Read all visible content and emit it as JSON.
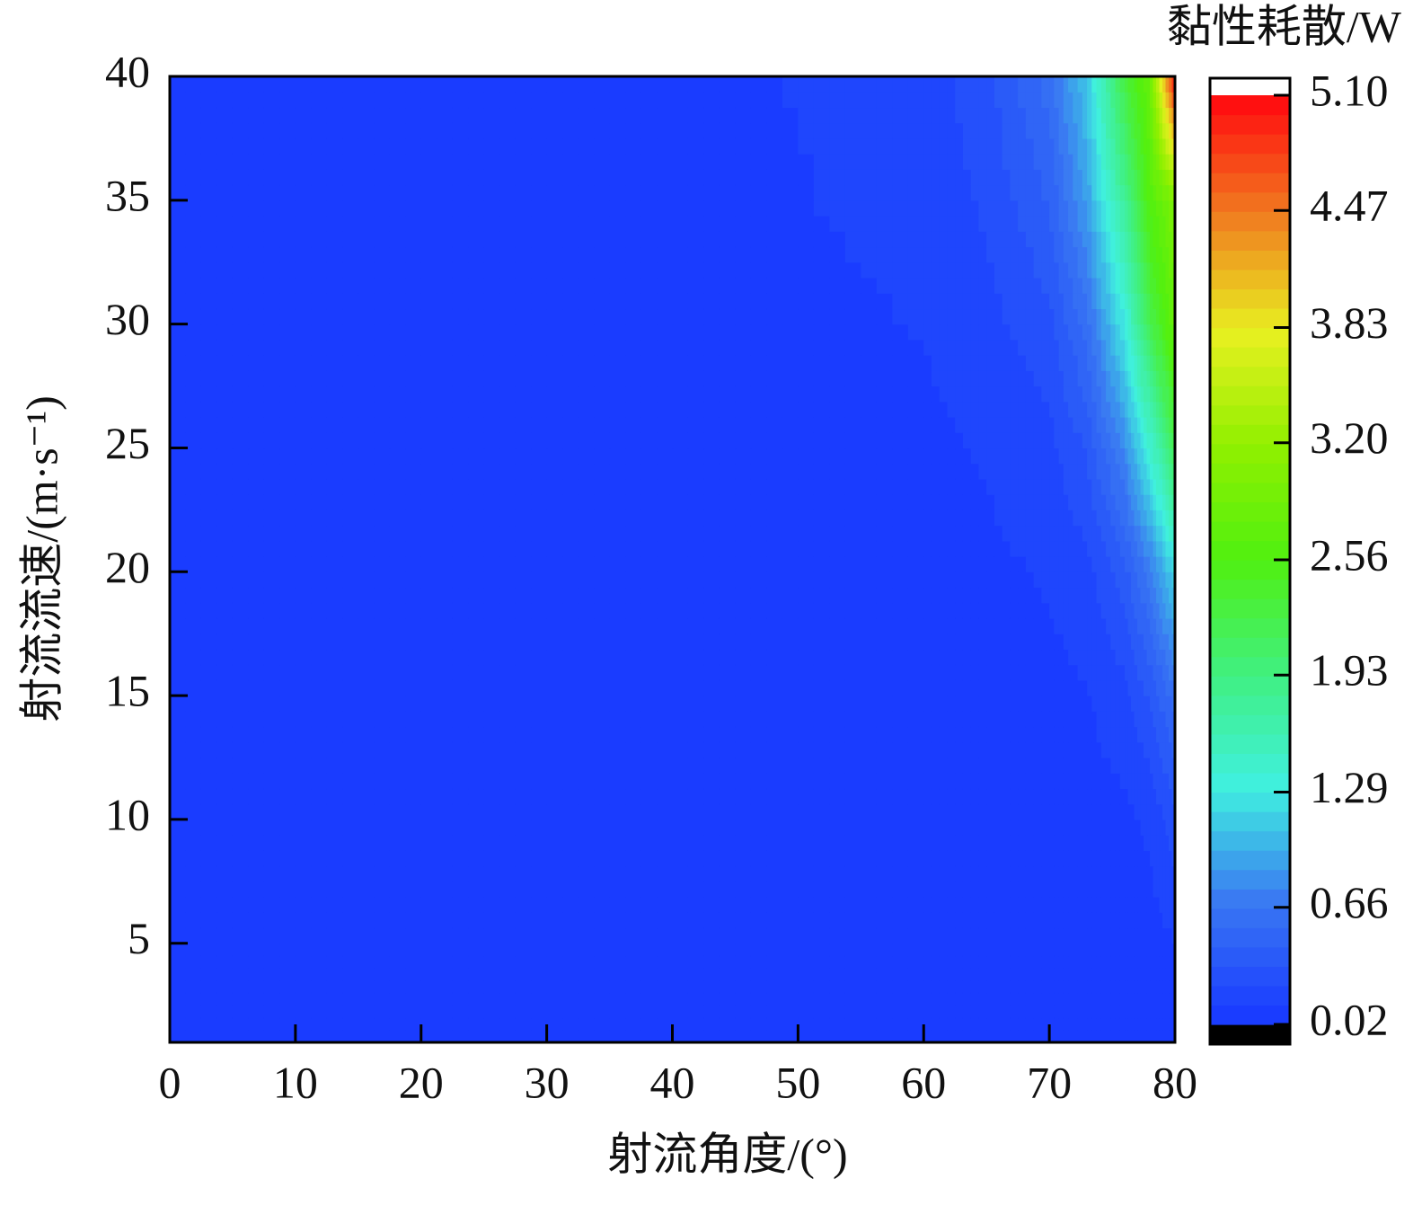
{
  "chart_data": {
    "type": "contour",
    "x_label": "射流角度/(°)",
    "y_label": "射流流速/(m·s⁻¹)",
    "x": [
      0,
      10,
      20,
      30,
      40,
      50,
      60,
      65,
      70,
      73,
      76,
      78,
      80
    ],
    "y": [
      1,
      5,
      10,
      15,
      20,
      25,
      30,
      35,
      40
    ],
    "z": [
      [
        0.03,
        0.03,
        0.03,
        0.03,
        0.03,
        0.03,
        0.03,
        0.04,
        0.04,
        0.05,
        0.05,
        0.06,
        0.08
      ],
      [
        0.03,
        0.03,
        0.03,
        0.03,
        0.03,
        0.03,
        0.04,
        0.05,
        0.05,
        0.06,
        0.07,
        0.08,
        0.12
      ],
      [
        0.03,
        0.03,
        0.03,
        0.03,
        0.03,
        0.04,
        0.05,
        0.06,
        0.07,
        0.08,
        0.1,
        0.15,
        0.3
      ],
      [
        0.03,
        0.03,
        0.03,
        0.03,
        0.04,
        0.05,
        0.06,
        0.07,
        0.09,
        0.12,
        0.2,
        0.35,
        0.6
      ],
      [
        0.03,
        0.03,
        0.03,
        0.04,
        0.05,
        0.06,
        0.08,
        0.1,
        0.14,
        0.2,
        0.4,
        0.7,
        1.2
      ],
      [
        0.03,
        0.03,
        0.04,
        0.05,
        0.06,
        0.08,
        0.1,
        0.14,
        0.2,
        0.35,
        0.8,
        1.4,
        2.2
      ],
      [
        0.03,
        0.04,
        0.05,
        0.06,
        0.08,
        0.1,
        0.13,
        0.2,
        0.3,
        0.6,
        1.3,
        2.2,
        2.8
      ],
      [
        0.04,
        0.05,
        0.06,
        0.07,
        0.09,
        0.12,
        0.16,
        0.25,
        0.45,
        0.9,
        1.8,
        2.6,
        3.0
      ],
      [
        0.04,
        0.05,
        0.06,
        0.08,
        0.1,
        0.13,
        0.18,
        0.3,
        0.6,
        1.1,
        2.3,
        2.8,
        5.1
      ]
    ],
    "xlim": [
      0,
      80
    ],
    "ylim": [
      1,
      40
    ],
    "xticks": [
      0,
      10,
      20,
      30,
      40,
      50,
      60,
      70,
      80
    ],
    "yticks": [
      5,
      10,
      15,
      20,
      25,
      30,
      35,
      40
    ],
    "colorbar": {
      "title": "黏性耗散/W",
      "clim": [
        0.02,
        5.1
      ],
      "ticks": [
        0.02,
        0.66,
        1.29,
        1.93,
        2.56,
        {
          "value": 3.2,
          "label": "3.20"
        },
        3.83,
        4.47,
        {
          "value": 5.1,
          "label": "5.10"
        }
      ],
      "colors": [
        "#1a3cff",
        "#3a78f2",
        "#40f0e0",
        "#40f080",
        "#50f010",
        "#90f000",
        "#e8f020",
        "#f08020",
        "#ff1010"
      ],
      "under_color": "#000000",
      "over_color": "#ffffff"
    }
  }
}
